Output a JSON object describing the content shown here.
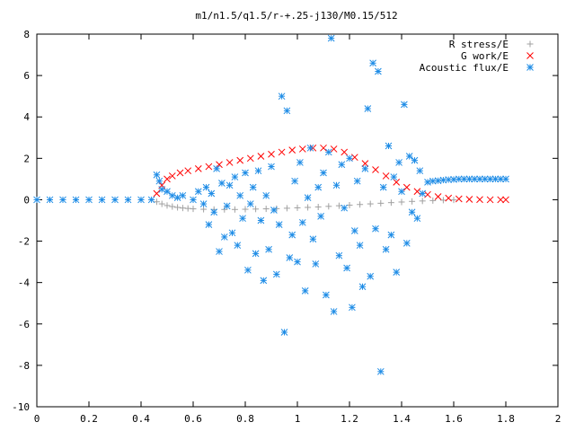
{
  "chart_data": {
    "type": "scatter",
    "title": "m1/n1.5/q1.5/r-+.25-j130/M0.15/512",
    "xlim": [
      0,
      2
    ],
    "ylim": [
      -10,
      8
    ],
    "x_ticks": [
      0,
      0.2,
      0.4,
      0.6,
      0.8,
      1,
      1.2,
      1.4,
      1.6,
      1.8,
      2
    ],
    "x_tick_labels": [
      "0",
      "0.2",
      "0.4",
      "0.6",
      "0.8",
      "1",
      "1.2",
      "1.4",
      "1.6",
      "1.8",
      "2"
    ],
    "y_ticks": [
      -10,
      -8,
      -6,
      -4,
      -2,
      0,
      2,
      4,
      6,
      8
    ],
    "y_tick_labels": [
      "-10",
      "-8",
      "-6",
      "-4",
      "-2",
      "0",
      "2",
      "4",
      "6",
      "8"
    ],
    "legend_position": "top-right",
    "series": [
      {
        "name": "R stress/E",
        "marker": "plus",
        "color": "#a0a0a0",
        "x": [
          0.46,
          0.48,
          0.5,
          0.52,
          0.54,
          0.56,
          0.58,
          0.6,
          0.64,
          0.68,
          0.72,
          0.76,
          0.8,
          0.84,
          0.88,
          0.92,
          0.96,
          1.0,
          1.04,
          1.08,
          1.12,
          1.16,
          1.2,
          1.24,
          1.28,
          1.32,
          1.36,
          1.4,
          1.44,
          1.48,
          1.52,
          1.56,
          1.6
        ],
        "y": [
          -0.1,
          -0.2,
          -0.28,
          -0.33,
          -0.37,
          -0.4,
          -0.42,
          -0.44,
          -0.46,
          -0.47,
          -0.47,
          -0.47,
          -0.46,
          -0.45,
          -0.44,
          -0.43,
          -0.41,
          -0.39,
          -0.37,
          -0.35,
          -0.32,
          -0.29,
          -0.26,
          -0.23,
          -0.2,
          -0.17,
          -0.14,
          -0.11,
          -0.08,
          -0.06,
          -0.04,
          -0.02,
          -0.01
        ]
      },
      {
        "name": "G work/E",
        "marker": "cross",
        "color": "#ff0000",
        "x": [
          0.46,
          0.48,
          0.5,
          0.52,
          0.55,
          0.58,
          0.62,
          0.66,
          0.7,
          0.74,
          0.78,
          0.82,
          0.86,
          0.9,
          0.94,
          0.98,
          1.02,
          1.06,
          1.1,
          1.14,
          1.18,
          1.22,
          1.26,
          1.3,
          1.34,
          1.38,
          1.42,
          1.46,
          1.5,
          1.54,
          1.58,
          1.62,
          1.66,
          1.7,
          1.74,
          1.78,
          1.8
        ],
        "y": [
          0.3,
          0.7,
          1.0,
          1.15,
          1.3,
          1.4,
          1.5,
          1.6,
          1.7,
          1.8,
          1.9,
          2.0,
          2.1,
          2.2,
          2.3,
          2.4,
          2.45,
          2.5,
          2.5,
          2.45,
          2.3,
          2.05,
          1.75,
          1.45,
          1.15,
          0.85,
          0.6,
          0.4,
          0.25,
          0.15,
          0.08,
          0.04,
          0.02,
          0.01,
          0.0,
          0.0,
          0.0
        ]
      },
      {
        "name": "Acoustic flux/E",
        "marker": "star",
        "color": "#1e8ce6",
        "x": [
          0.0,
          0.05,
          0.1,
          0.15,
          0.2,
          0.25,
          0.3,
          0.35,
          0.4,
          0.44,
          0.46,
          0.47,
          0.48,
          0.5,
          0.52,
          0.54,
          0.56,
          0.6,
          0.62,
          0.64,
          0.65,
          0.66,
          0.67,
          0.68,
          0.69,
          0.7,
          0.71,
          0.72,
          0.73,
          0.74,
          0.75,
          0.76,
          0.77,
          0.78,
          0.79,
          0.8,
          0.81,
          0.82,
          0.83,
          0.84,
          0.85,
          0.86,
          0.87,
          0.88,
          0.89,
          0.9,
          0.91,
          0.92,
          0.93,
          0.94,
          0.95,
          0.96,
          0.97,
          0.98,
          0.99,
          1.0,
          1.01,
          1.02,
          1.03,
          1.04,
          1.05,
          1.06,
          1.07,
          1.08,
          1.09,
          1.1,
          1.11,
          1.12,
          1.13,
          1.14,
          1.15,
          1.16,
          1.17,
          1.18,
          1.19,
          1.2,
          1.21,
          1.22,
          1.23,
          1.24,
          1.25,
          1.26,
          1.27,
          1.28,
          1.29,
          1.3,
          1.31,
          1.32,
          1.33,
          1.34,
          1.35,
          1.36,
          1.37,
          1.38,
          1.39,
          1.4,
          1.41,
          1.42,
          1.43,
          1.44,
          1.45,
          1.46,
          1.47,
          1.48,
          1.5,
          1.52,
          1.54,
          1.56,
          1.58,
          1.6,
          1.62,
          1.64,
          1.66,
          1.68,
          1.7,
          1.72,
          1.74,
          1.76,
          1.78,
          1.8
        ],
        "y": [
          0.0,
          0.0,
          0.0,
          0.0,
          0.0,
          0.0,
          0.0,
          0.0,
          0.0,
          0.0,
          1.2,
          0.9,
          0.5,
          0.4,
          0.2,
          0.1,
          0.2,
          0.0,
          0.4,
          -0.2,
          0.6,
          -1.2,
          0.3,
          -0.6,
          1.5,
          -2.5,
          0.8,
          -1.8,
          -0.3,
          0.7,
          -1.6,
          1.1,
          -2.2,
          0.2,
          -0.9,
          1.3,
          -3.4,
          -0.2,
          0.6,
          -2.6,
          1.4,
          -1.0,
          -3.9,
          0.2,
          -2.4,
          1.6,
          -0.5,
          -3.6,
          -1.2,
          5.0,
          -6.4,
          4.3,
          -2.8,
          -1.7,
          0.9,
          -3.0,
          1.8,
          -1.1,
          -4.4,
          0.1,
          2.5,
          -1.9,
          -3.1,
          0.6,
          -0.8,
          1.3,
          -4.6,
          2.3,
          7.8,
          -5.4,
          0.7,
          -2.7,
          1.7,
          -0.4,
          -3.3,
          2.0,
          -5.2,
          -1.5,
          0.9,
          -2.2,
          -4.2,
          1.5,
          4.4,
          -3.7,
          6.6,
          -1.4,
          6.2,
          -8.3,
          0.6,
          -2.4,
          2.6,
          -1.7,
          1.1,
          -3.5,
          1.8,
          0.4,
          4.6,
          -2.1,
          2.1,
          -0.6,
          1.9,
          -0.9,
          1.4,
          0.3,
          0.85,
          0.9,
          0.92,
          0.95,
          0.97,
          0.98,
          1.0,
          1.0,
          1.0,
          1.0,
          1.0,
          1.0,
          1.0,
          1.0,
          1.0,
          1.0
        ]
      }
    ]
  }
}
